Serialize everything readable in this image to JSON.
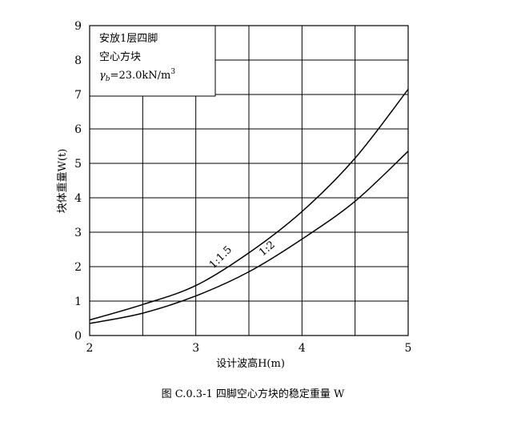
{
  "chart_data": {
    "type": "line",
    "xlabel": "设计波高H(m)",
    "ylabel": "块体重量W(t)",
    "xlim": [
      2,
      5
    ],
    "ylim": [
      0,
      9
    ],
    "x_ticks": [
      "2",
      "3",
      "4",
      "5"
    ],
    "y_ticks": [
      "0",
      "1",
      "2",
      "3",
      "4",
      "5",
      "6",
      "7",
      "8",
      "9"
    ],
    "grid": true,
    "legend_box": {
      "placement": "top-left",
      "line1": "安放1层四脚",
      "line2": "空心方块",
      "line3_symbol": "γ",
      "line3_sub": "b",
      "line3_value": "=23.0kN/m",
      "line3_sup": "3"
    },
    "series": [
      {
        "name": "1:1.5",
        "x": [
          2.0,
          2.5,
          3.0,
          3.5,
          4.0,
          4.5,
          5.0
        ],
        "values": [
          0.45,
          0.9,
          1.45,
          2.4,
          3.6,
          5.15,
          7.15
        ]
      },
      {
        "name": "1:2",
        "x": [
          2.0,
          2.5,
          3.0,
          3.5,
          4.0,
          4.5,
          5.0
        ],
        "values": [
          0.35,
          0.65,
          1.15,
          1.85,
          2.8,
          3.9,
          5.35
        ]
      }
    ],
    "caption": "图 C.0.3-1   四脚空心方块的稳定重量 W"
  }
}
